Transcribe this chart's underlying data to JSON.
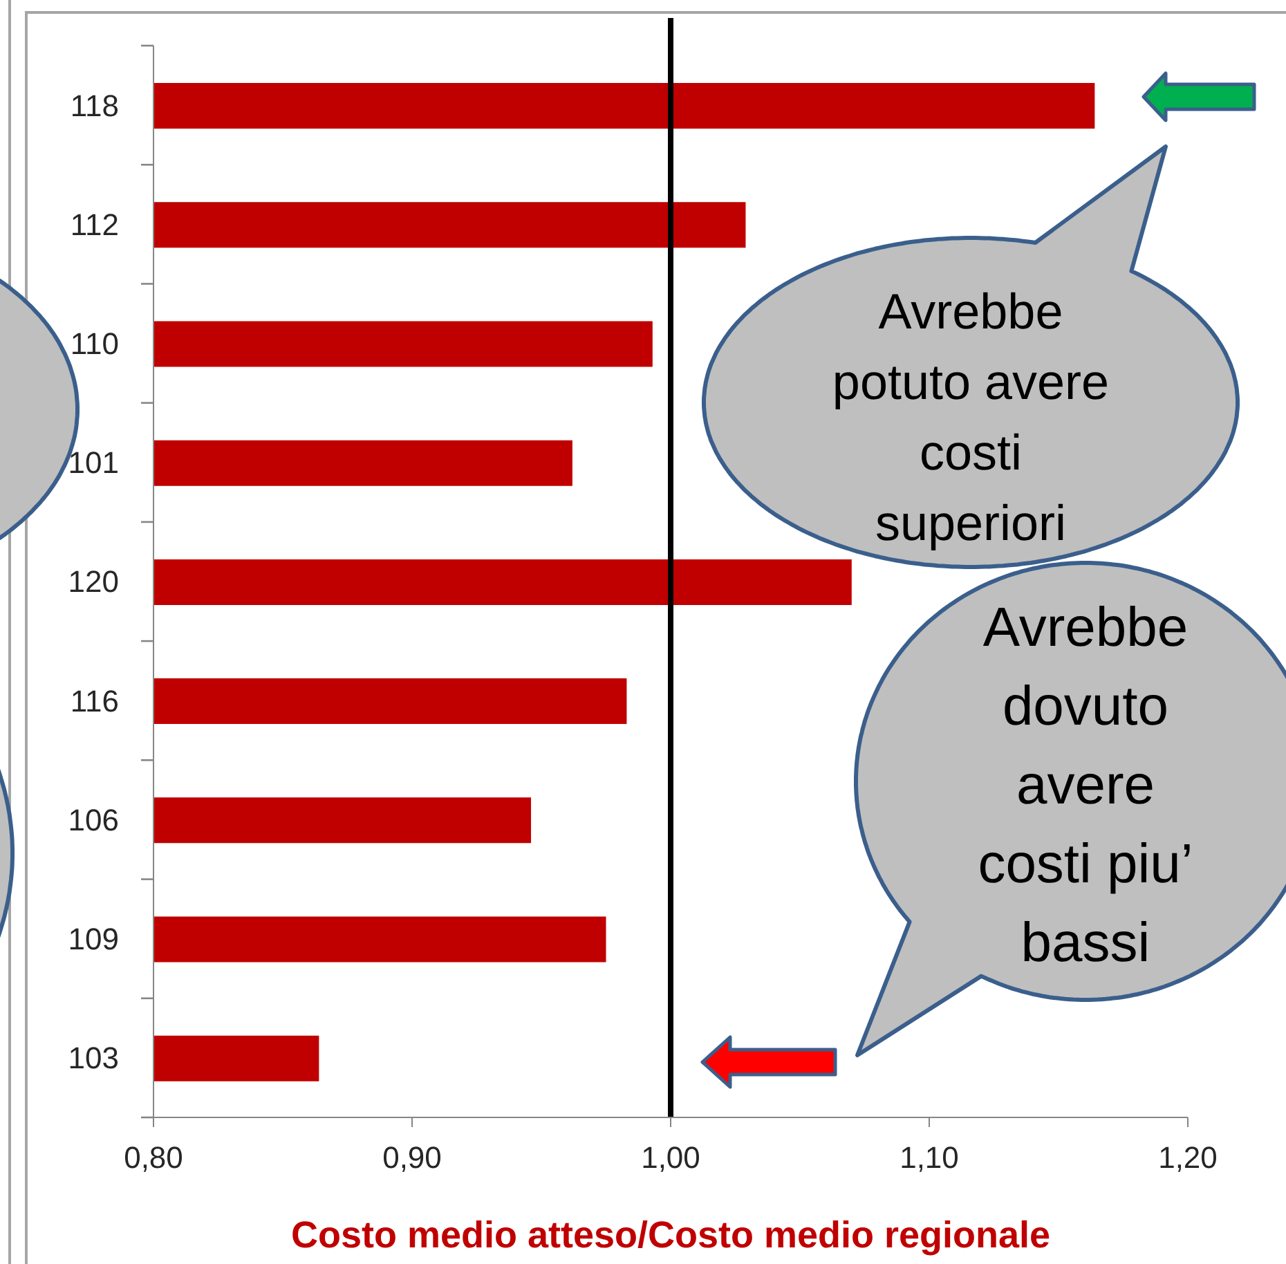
{
  "chart_data": {
    "type": "bar",
    "orientation": "horizontal",
    "categories": [
      "118",
      "112",
      "110",
      "101",
      "120",
      "116",
      "106",
      "109",
      "103"
    ],
    "values": [
      1.164,
      1.029,
      0.993,
      0.962,
      1.07,
      0.983,
      0.946,
      0.975,
      0.864
    ],
    "color": "#c00000",
    "xlim": [
      0.8,
      1.2
    ],
    "xticks": [
      {
        "value": 0.8,
        "label": "0,80"
      },
      {
        "value": 0.9,
        "label": "0,90"
      },
      {
        "value": 1.0,
        "label": "1,00"
      },
      {
        "value": 1.1,
        "label": "1,10"
      },
      {
        "value": 1.2,
        "label": "1,20"
      }
    ],
    "xlabel": "Costo medio atteso/Costo medio regionale",
    "ref_lines": [
      {
        "axis": "x",
        "value": 1.0,
        "color": "#000000"
      }
    ],
    "annotations": [
      "Avrebbe potuto avere costi superiori",
      "Avrebbe dovuto avere costi piu’ bassi"
    ]
  }
}
